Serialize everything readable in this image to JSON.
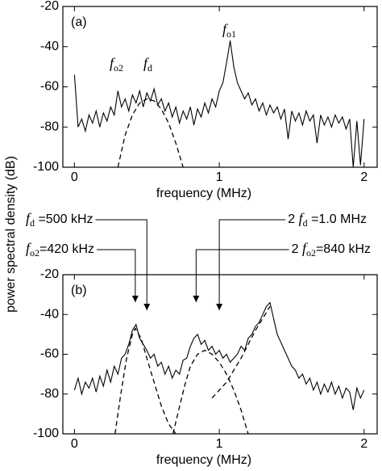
{
  "chart_data": [
    {
      "type": "line",
      "panel_label": "(a)",
      "xlabel": "frequency (MHz)",
      "ylabel": "power spectral density (dB)",
      "xlim": [
        -0.08,
        2.09
      ],
      "ylim": [
        -100,
        -20
      ],
      "xticks": [
        0,
        1,
        2
      ],
      "yticks": [
        -100,
        -80,
        -60,
        -40,
        -20
      ],
      "peak_labels": [
        {
          "italic": "f",
          "sub": "o2"
        },
        {
          "italic": "f",
          "sub": "d"
        },
        {
          "italic": "f",
          "sub": "o1"
        }
      ],
      "series": [
        {
          "color": "#000000",
          "x": [
            0,
            0.025,
            0.05,
            0.075,
            0.1,
            0.125,
            0.15,
            0.175,
            0.2,
            0.225,
            0.25,
            0.275,
            0.3,
            0.325,
            0.35,
            0.375,
            0.4,
            0.425,
            0.45,
            0.475,
            0.5,
            0.525,
            0.55,
            0.575,
            0.6,
            0.625,
            0.65,
            0.675,
            0.7,
            0.725,
            0.75,
            0.775,
            0.8,
            0.825,
            0.85,
            0.875,
            0.9,
            0.925,
            0.95,
            0.975,
            1.0,
            1.025,
            1.05,
            1.075,
            1.1,
            1.125,
            1.15,
            1.175,
            1.2,
            1.225,
            1.25,
            1.275,
            1.3,
            1.325,
            1.35,
            1.375,
            1.4,
            1.425,
            1.45,
            1.475,
            1.5,
            1.525,
            1.55,
            1.575,
            1.6,
            1.625,
            1.65,
            1.675,
            1.7,
            1.725,
            1.75,
            1.775,
            1.8,
            1.825,
            1.85,
            1.875,
            1.9,
            1.925,
            1.95,
            1.975,
            2.0
          ],
          "values": [
            -54,
            -80,
            -76,
            -82,
            -74,
            -78,
            -72,
            -80,
            -73,
            -77,
            -70,
            -74,
            -62,
            -70,
            -66,
            -72,
            -64,
            -68,
            -62,
            -70,
            -63,
            -67,
            -61,
            -69,
            -66,
            -72,
            -68,
            -75,
            -70,
            -78,
            -72,
            -76,
            -70,
            -79,
            -71,
            -75,
            -68,
            -73,
            -66,
            -70,
            -62,
            -58,
            -48,
            -37,
            -50,
            -58,
            -62,
            -66,
            -63,
            -69,
            -66,
            -72,
            -68,
            -74,
            -69,
            -73,
            -70,
            -76,
            -71,
            -86,
            -72,
            -77,
            -73,
            -79,
            -72,
            -77,
            -74,
            -88,
            -74,
            -79,
            -75,
            -80,
            -74,
            -78,
            -75,
            -81,
            -76,
            -100,
            -77,
            -99,
            -76
          ]
        },
        {
          "color": "#000000",
          "dashed": true,
          "x": [
            0.3,
            0.35,
            0.4,
            0.45,
            0.5,
            0.55,
            0.6,
            0.65,
            0.7,
            0.75
          ],
          "values": [
            -100,
            -84,
            -74,
            -68,
            -66,
            -67,
            -71,
            -78,
            -88,
            -100
          ]
        }
      ]
    },
    {
      "type": "line",
      "panel_label": "(b)",
      "xlabel": "frequency (MHz)",
      "xlim": [
        -0.08,
        2.09
      ],
      "ylim": [
        -100,
        -20
      ],
      "xticks": [
        0,
        1,
        2
      ],
      "yticks": [
        -100,
        -80,
        -60,
        -40,
        -20
      ],
      "arrow_labels": [
        {
          "italic": "f",
          "sub": "d",
          "suffix": " =500 kHz",
          "x": 0.5
        },
        {
          "italic": "f",
          "sub": "o2",
          "suffix": "=420 kHz",
          "x": 0.42
        },
        {
          "prefix": "2 ",
          "italic": "f",
          "sub": "d",
          "suffix": " =1.0 MHz",
          "x": 1.0
        },
        {
          "prefix": "2 ",
          "italic": "f",
          "sub": "o2",
          "suffix": "=840 kHz",
          "x": 0.84
        }
      ],
      "series": [
        {
          "color": "#000000",
          "x": [
            0,
            0.025,
            0.05,
            0.075,
            0.1,
            0.125,
            0.15,
            0.175,
            0.2,
            0.225,
            0.25,
            0.275,
            0.3,
            0.325,
            0.35,
            0.375,
            0.4,
            0.425,
            0.45,
            0.475,
            0.5,
            0.525,
            0.55,
            0.575,
            0.6,
            0.625,
            0.65,
            0.675,
            0.7,
            0.725,
            0.75,
            0.775,
            0.8,
            0.825,
            0.85,
            0.875,
            0.9,
            0.925,
            0.95,
            0.975,
            1.0,
            1.025,
            1.05,
            1.075,
            1.1,
            1.125,
            1.15,
            1.175,
            1.2,
            1.225,
            1.25,
            1.275,
            1.3,
            1.325,
            1.35,
            1.375,
            1.4,
            1.425,
            1.45,
            1.475,
            1.5,
            1.525,
            1.55,
            1.575,
            1.6,
            1.625,
            1.65,
            1.675,
            1.7,
            1.725,
            1.75,
            1.775,
            1.8,
            1.825,
            1.85,
            1.875,
            1.9,
            1.925,
            1.95,
            1.975,
            2.0
          ],
          "values": [
            -78,
            -72,
            -80,
            -74,
            -77,
            -72,
            -79,
            -71,
            -76,
            -68,
            -74,
            -66,
            -70,
            -62,
            -60,
            -55,
            -48,
            -45,
            -52,
            -55,
            -58,
            -62,
            -60,
            -66,
            -64,
            -70,
            -66,
            -72,
            -68,
            -70,
            -63,
            -62,
            -56,
            -52,
            -50,
            -55,
            -53,
            -58,
            -56,
            -60,
            -58,
            -62,
            -60,
            -64,
            -62,
            -60,
            -56,
            -58,
            -52,
            -50,
            -46,
            -44,
            -40,
            -36,
            -34,
            -42,
            -50,
            -54,
            -58,
            -62,
            -66,
            -68,
            -72,
            -70,
            -75,
            -72,
            -78,
            -74,
            -80,
            -75,
            -79,
            -74,
            -80,
            -76,
            -82,
            -77,
            -79,
            -88,
            -77,
            -82,
            -78
          ]
        },
        {
          "color": "#000000",
          "dashed": true,
          "x": [
            0.28,
            0.32,
            0.36,
            0.4,
            0.42,
            0.46,
            0.5,
            0.55,
            0.6,
            0.65,
            0.7
          ],
          "values": [
            -100,
            -80,
            -62,
            -50,
            -47,
            -52,
            -62,
            -74,
            -86,
            -95,
            -100
          ]
        },
        {
          "color": "#000000",
          "dashed": true,
          "x": [
            0.68,
            0.72,
            0.76,
            0.8,
            0.85,
            0.9,
            0.95,
            1.0,
            1.05,
            1.1,
            1.15,
            1.2
          ],
          "values": [
            -100,
            -88,
            -76,
            -66,
            -60,
            -58,
            -60,
            -64,
            -70,
            -78,
            -88,
            -100
          ]
        },
        {
          "color": "#000000",
          "dashed": true,
          "x": [
            0.95,
            1.05,
            1.15,
            1.25,
            1.35
          ],
          "values": [
            -82,
            -74,
            -62,
            -48,
            -36
          ]
        }
      ]
    }
  ]
}
